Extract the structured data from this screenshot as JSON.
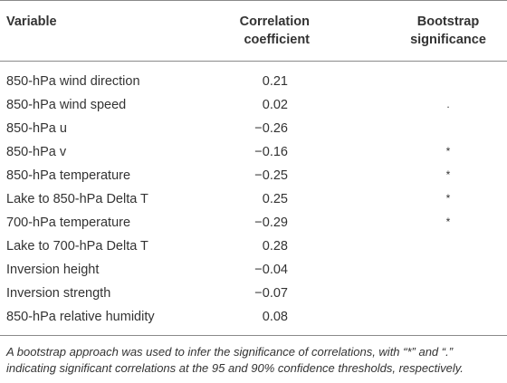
{
  "table": {
    "headers": {
      "variable": "Variable",
      "correlation": [
        "Correlation",
        "coefficient"
      ],
      "bootstrap": [
        "Bootstrap",
        "significance"
      ]
    },
    "rows": [
      {
        "variable": "850-hPa wind direction",
        "correlation": "0.21",
        "significance": ""
      },
      {
        "variable": "850-hPa wind speed",
        "correlation": "0.02",
        "significance": "."
      },
      {
        "variable": "850-hPa u",
        "correlation": "−0.26",
        "significance": ""
      },
      {
        "variable": "850-hPa v",
        "correlation": "−0.16",
        "significance": "*"
      },
      {
        "variable": "850-hPa temperature",
        "correlation": "−0.25",
        "significance": "*"
      },
      {
        "variable": "Lake to 850-hPa Delta T",
        "correlation": "0.25",
        "significance": "*"
      },
      {
        "variable": "700-hPa temperature",
        "correlation": "−0.29",
        "significance": "*"
      },
      {
        "variable": "Lake to 700-hPa Delta T",
        "correlation": "0.28",
        "significance": ""
      },
      {
        "variable": "Inversion height",
        "correlation": "−0.04",
        "significance": ""
      },
      {
        "variable": "Inversion strength",
        "correlation": "−0.07",
        "significance": ""
      },
      {
        "variable": "850-hPa relative humidity",
        "correlation": "0.08",
        "significance": ""
      }
    ]
  },
  "footnote": "A bootstrap approach was used to infer the significance of correlations, with “*” and “.” indicating significant correlations at the 95 and 90% confidence thresholds, respectively."
}
